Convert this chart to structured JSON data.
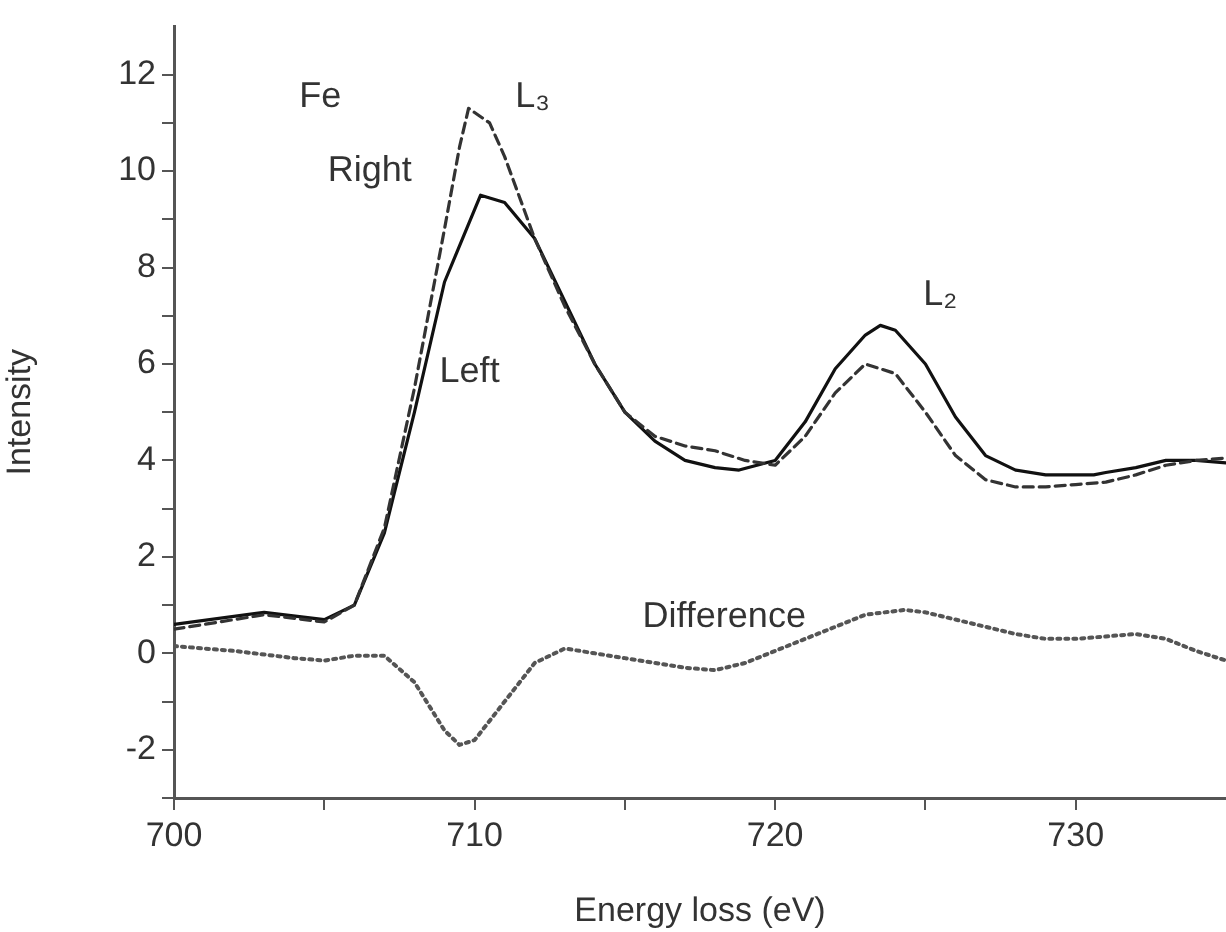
{
  "chart_data": {
    "type": "line",
    "xlabel": "Energy loss (eV)",
    "ylabel": "Intensity",
    "xlim": [
      700,
      735
    ],
    "ylim": [
      -3,
      13
    ],
    "xticks": [
      700,
      {
        "value": 705,
        "label": null
      },
      710,
      {
        "value": 715,
        "label": null
      },
      720,
      {
        "value": 725,
        "label": null
      },
      730
    ],
    "yticks": [
      {
        "value": -3,
        "label": null
      },
      -2,
      {
        "value": -1,
        "label": null
      },
      0,
      {
        "value": 1,
        "label": null
      },
      2,
      {
        "value": 3,
        "label": null
      },
      4,
      {
        "value": 5,
        "label": null
      },
      6,
      {
        "value": 7,
        "label": null
      },
      8,
      {
        "value": 9,
        "label": null
      },
      10,
      {
        "value": 11,
        "label": null
      },
      12
    ],
    "annotations": [
      "Fe",
      {
        "text": "L₃",
        "x": 710,
        "y": 11.2
      },
      {
        "text": "L₂",
        "x": 723.5,
        "y": 6.8
      }
    ],
    "marker": "none",
    "legend": false,
    "grid": false,
    "series": [
      {
        "name": "Right",
        "color": "#333333",
        "line_style": "dashed",
        "x": [
          700,
          703,
          705,
          706,
          707,
          708,
          709,
          709.5,
          709.8,
          710.5,
          711,
          712,
          713,
          714,
          715,
          716,
          717,
          718,
          719,
          720,
          721,
          722,
          723,
          724,
          725,
          726,
          727,
          728,
          729,
          730,
          731,
          732,
          733,
          734,
          735
        ],
        "values": [
          0.5,
          0.8,
          0.65,
          1.0,
          2.6,
          5.5,
          8.8,
          10.5,
          11.3,
          11.0,
          10.3,
          8.6,
          7.2,
          6.0,
          5.0,
          4.5,
          4.3,
          4.2,
          4.0,
          3.9,
          4.5,
          5.4,
          6.0,
          5.8,
          5.0,
          4.1,
          3.6,
          3.45,
          3.45,
          3.5,
          3.55,
          3.7,
          3.9,
          4.0,
          4.05
        ]
      },
      {
        "name": "Left",
        "color": "#111111",
        "line_style": "solid",
        "x": [
          700,
          703,
          705,
          706,
          707,
          708,
          709,
          710.2,
          711,
          712,
          713,
          714,
          715,
          716,
          717,
          718,
          718.8,
          720,
          721,
          722,
          723,
          723.5,
          724,
          725,
          726,
          727,
          728,
          729,
          730.6,
          731,
          732,
          733,
          734,
          735
        ],
        "values": [
          0.6,
          0.85,
          0.7,
          1.0,
          2.5,
          5.0,
          7.7,
          9.5,
          9.35,
          8.6,
          7.3,
          6.0,
          5.0,
          4.4,
          4.0,
          3.85,
          3.8,
          4.0,
          4.8,
          5.9,
          6.6,
          6.8,
          6.7,
          6.0,
          4.9,
          4.1,
          3.8,
          3.7,
          3.7,
          3.75,
          3.85,
          4.0,
          4.0,
          3.95
        ]
      },
      {
        "name": "Difference",
        "color": "#555555",
        "line_style": "dotted",
        "x": [
          700,
          702,
          704,
          705,
          706,
          707,
          708,
          709,
          709.5,
          710,
          711,
          712,
          713,
          714,
          715,
          716,
          717,
          718,
          719,
          720,
          721,
          722,
          723,
          724.3,
          725,
          726,
          727,
          728,
          729,
          730,
          731,
          732,
          733,
          734,
          735
        ],
        "values": [
          0.15,
          0.05,
          -0.1,
          -0.15,
          -0.05,
          -0.05,
          -0.6,
          -1.6,
          -1.9,
          -1.8,
          -1.0,
          -0.2,
          0.1,
          0.0,
          -0.1,
          -0.2,
          -0.3,
          -0.35,
          -0.2,
          0.05,
          0.3,
          0.55,
          0.8,
          0.9,
          0.85,
          0.7,
          0.55,
          0.4,
          0.3,
          0.3,
          0.35,
          0.4,
          0.3,
          0.05,
          -0.15
        ]
      }
    ]
  }
}
